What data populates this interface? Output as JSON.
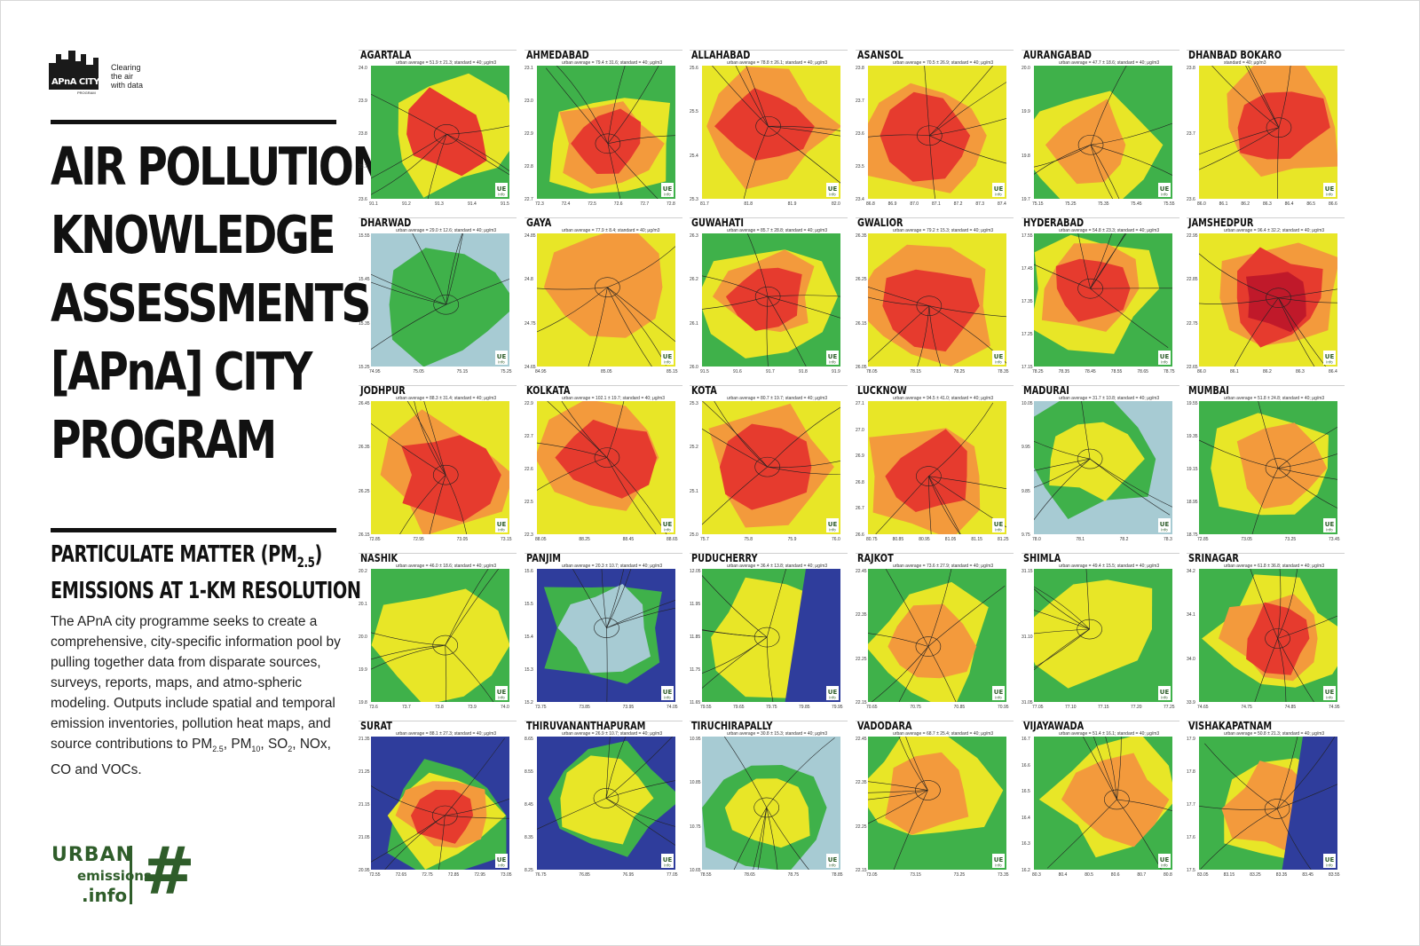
{
  "program_logo": {
    "name": "APnA CITY",
    "sub": "PROGRAM",
    "tagline": [
      "Clearing",
      "the air",
      "with data"
    ]
  },
  "title_lines": [
    "AIR POLLUTION",
    "KNOWLEDGE",
    "ASSESSMENTS",
    "[APnA] CITY",
    "PROGRAM"
  ],
  "subtitle": {
    "line1_pre": "PARTICULATE MATTER (PM",
    "line1_sub": "2.5",
    "line1_post": ")",
    "line2": "EMISSIONS AT 1-KM RESOLUTION"
  },
  "description": {
    "text": "The APnA city programme seeks to create a comprehensive, city-specific information pool by pulling together data from disparate sources, surveys, reports, maps, and atmo-spheric modeling. Outputs include spatial and temporal emission inventories, pollution heat maps, and source contributions to",
    "pm25": "PM",
    "pm25_sub": "2.5",
    "pm10": "PM",
    "pm10_sub": "10",
    "so2": "SO",
    "so2_sub": "2",
    "tail": "NOx, CO and VOCs."
  },
  "ue_logo": {
    "urban": "URBAN",
    "emissions": "emissions",
    "info": ".info",
    "symbol": "#"
  },
  "map_badge": {
    "top": "UE",
    "bottom": "info"
  },
  "colors": {
    "green": "#3fb14a",
    "yellow": "#e8e627",
    "orange": "#f39a3c",
    "red": "#e63b2e",
    "darkred": "#c0192a",
    "water": "#2f3d9c",
    "lightblue": "#a7cbd3",
    "road": "#222222"
  },
  "cities": [
    {
      "name": "AGARTALA",
      "stat": "urban average = 51.9 ± 21.3; standard = 40; μg/m3",
      "yticks": [
        "24.0",
        "23.9",
        "23.8",
        "23.7",
        "23.6"
      ],
      "xticks": [
        "91.1",
        "91.2",
        "91.3",
        "91.4",
        "91.5"
      ],
      "levels": [
        "green",
        "yellow",
        "red"
      ]
    },
    {
      "name": "AHMEDABAD",
      "stat": "urban average = 79.4 ± 31.6; standard = 40; μg/m3",
      "yticks": [
        "23.1",
        "23.0",
        "22.9",
        "22.8",
        "22.7"
      ],
      "xticks": [
        "72.3",
        "72.4",
        "72.5",
        "72.6",
        "72.7",
        "72.8"
      ],
      "levels": [
        "green",
        "yellow",
        "orange",
        "red"
      ]
    },
    {
      "name": "ALLAHABAD",
      "stat": "urban average = 78.8 ± 26.1; standard = 40; μg/m3",
      "yticks": [
        "25.6",
        "25.5",
        "25.4",
        "25.3"
      ],
      "xticks": [
        "81.7",
        "81.8",
        "81.9",
        "82.0"
      ],
      "levels": [
        "yellow",
        "orange",
        "red"
      ]
    },
    {
      "name": "ASANSOL",
      "stat": "urban average = 70.5 ± 26.9; standard = 40; μg/m3",
      "yticks": [
        "23.8",
        "23.7",
        "23.6",
        "23.5",
        "23.4"
      ],
      "xticks": [
        "86.8",
        "86.9",
        "87.0",
        "87.1",
        "87.2",
        "87.3",
        "87.4"
      ],
      "levels": [
        "yellow",
        "orange",
        "red"
      ]
    },
    {
      "name": "AURANGABAD",
      "stat": "urban average = 47.7 ± 18.6; standard = 40; μg/m3",
      "yticks": [
        "20.0",
        "19.9",
        "19.8",
        "19.7"
      ],
      "xticks": [
        "75.15",
        "75.25",
        "75.35",
        "75.45",
        "75.55"
      ],
      "levels": [
        "green",
        "yellow",
        "orange"
      ]
    },
    {
      "name": "DHANBAD BOKARO",
      "stat": "standard = 40; μg/m3",
      "yticks": [
        "23.8",
        "23.7",
        "23.6"
      ],
      "xticks": [
        "86.0",
        "86.1",
        "86.2",
        "86.3",
        "86.4",
        "86.5",
        "86.6"
      ],
      "levels": [
        "yellow",
        "orange",
        "red"
      ]
    },
    {
      "name": "DHARWAD",
      "stat": "urban average = 29.0 ± 12.6; standard = 40; μg/m3",
      "yticks": [
        "15.55",
        "15.45",
        "15.35",
        "15.25"
      ],
      "xticks": [
        "74.95",
        "75.05",
        "75.15",
        "75.25"
      ],
      "levels": [
        "lightblue",
        "green"
      ]
    },
    {
      "name": "GAYA",
      "stat": "urban average = 77.9 ± 8.4; standard = 40; μg/m3",
      "yticks": [
        "24.85",
        "24.8",
        "24.75",
        "24.65"
      ],
      "xticks": [
        "84.95",
        "85.05",
        "85.15"
      ],
      "levels": [
        "yellow",
        "orange"
      ]
    },
    {
      "name": "GUWAHATI",
      "stat": "urban average = 85.7 ± 28.8; standard = 40; μg/m3",
      "yticks": [
        "26.3",
        "26.2",
        "26.1",
        "26.0"
      ],
      "xticks": [
        "91.5",
        "91.6",
        "91.7",
        "91.8",
        "91.9"
      ],
      "levels": [
        "green",
        "yellow",
        "orange",
        "red"
      ]
    },
    {
      "name": "GWALIOR",
      "stat": "urban average = 79.2 ± 15.3; standard = 40; μg/m3",
      "yticks": [
        "26.35",
        "26.25",
        "26.15",
        "26.05"
      ],
      "xticks": [
        "78.05",
        "78.15",
        "78.25",
        "78.35"
      ],
      "levels": [
        "yellow",
        "orange",
        "red"
      ]
    },
    {
      "name": "HYDERABAD",
      "stat": "urban average = 54.8 ± 23.3; standard = 40; μg/m3",
      "yticks": [
        "17.55",
        "17.45",
        "17.35",
        "17.25",
        "17.15"
      ],
      "xticks": [
        "78.25",
        "78.35",
        "78.45",
        "78.55",
        "78.65",
        "78.75"
      ],
      "levels": [
        "green",
        "yellow",
        "orange",
        "red"
      ]
    },
    {
      "name": "JAMSHEDPUR",
      "stat": "urban average = 96.4 ± 32.2; standard = 40; μg/m3",
      "yticks": [
        "22.95",
        "22.85",
        "22.75",
        "22.65"
      ],
      "xticks": [
        "86.0",
        "86.1",
        "86.2",
        "86.3",
        "86.4"
      ],
      "levels": [
        "yellow",
        "orange",
        "red",
        "darkred"
      ]
    },
    {
      "name": "JODHPUR",
      "stat": "urban average = 88.3 ± 31.4; standard = 40; μg/m3",
      "yticks": [
        "26.45",
        "26.35",
        "26.25",
        "26.15"
      ],
      "xticks": [
        "72.85",
        "72.95",
        "73.05",
        "73.15"
      ],
      "levels": [
        "yellow",
        "orange",
        "red"
      ]
    },
    {
      "name": "KOLKATA",
      "stat": "urban average = 102.1 ± 19.7; standard = 40; μg/m3",
      "yticks": [
        "22.9",
        "22.7",
        "22.6",
        "22.5",
        "22.3"
      ],
      "xticks": [
        "88.05",
        "88.25",
        "88.45",
        "88.65"
      ],
      "levels": [
        "yellow",
        "orange",
        "red"
      ]
    },
    {
      "name": "KOTA",
      "stat": "urban average = 80.7 ± 19.7; standard = 40; μg/m3",
      "yticks": [
        "25.3",
        "25.2",
        "25.1",
        "25.0"
      ],
      "xticks": [
        "75.7",
        "75.8",
        "75.9",
        "76.0"
      ],
      "levels": [
        "yellow",
        "orange",
        "red"
      ]
    },
    {
      "name": "LUCKNOW",
      "stat": "urban average = 94.5 ± 41.0; standard = 40; μg/m3",
      "yticks": [
        "27.1",
        "27.0",
        "26.9",
        "26.8",
        "26.7",
        "26.6"
      ],
      "xticks": [
        "80.75",
        "80.85",
        "80.95",
        "81.05",
        "81.15",
        "81.25"
      ],
      "levels": [
        "yellow",
        "orange",
        "red"
      ]
    },
    {
      "name": "MADURAI",
      "stat": "urban average = 31.7 ± 10.8; standard = 40; μg/m3",
      "yticks": [
        "10.05",
        "9.95",
        "9.85",
        "9.75"
      ],
      "xticks": [
        "78.0",
        "78.1",
        "78.2",
        "78.3"
      ],
      "levels": [
        "lightblue",
        "green",
        "yellow"
      ]
    },
    {
      "name": "MUMBAI",
      "stat": "urban average = 51.8 ± 24.8; standard = 40; μg/m3",
      "yticks": [
        "19.55",
        "19.35",
        "19.15",
        "18.95",
        "18.75"
      ],
      "xticks": [
        "72.85",
        "73.05",
        "73.25",
        "73.45"
      ],
      "levels": [
        "green",
        "yellow",
        "orange"
      ]
    },
    {
      "name": "NASHIK",
      "stat": "urban average = 46.0 ± 18.6; standard = 40; μg/m3",
      "yticks": [
        "20.2",
        "20.1",
        "20.0",
        "19.9",
        "19.8"
      ],
      "xticks": [
        "73.6",
        "73.7",
        "73.8",
        "73.9",
        "74.0"
      ],
      "levels": [
        "green",
        "yellow"
      ]
    },
    {
      "name": "PANJIM",
      "stat": "urban average = 20.3 ± 10.7; standard = 40; μg/m3",
      "yticks": [
        "15.6",
        "15.5",
        "15.4",
        "15.3",
        "15.2"
      ],
      "xticks": [
        "73.75",
        "73.85",
        "73.95",
        "74.05"
      ],
      "levels": [
        "water",
        "green",
        "lightblue"
      ]
    },
    {
      "name": "PUDUCHERRY",
      "stat": "urban average = 36.4 ± 13.8; standard = 40; μg/m3",
      "yticks": [
        "12.05",
        "11.95",
        "11.85",
        "11.75",
        "11.65"
      ],
      "xticks": [
        "79.55",
        "79.65",
        "79.75",
        "79.85",
        "79.95"
      ],
      "levels": [
        "green",
        "yellow",
        "water"
      ]
    },
    {
      "name": "RAJKOT",
      "stat": "urban average = 73.6 ± 27.9; standard = 40; μg/m3",
      "yticks": [
        "22.45",
        "22.35",
        "22.25",
        "22.15"
      ],
      "xticks": [
        "70.65",
        "70.75",
        "70.85",
        "70.95"
      ],
      "levels": [
        "green",
        "yellow",
        "orange"
      ]
    },
    {
      "name": "SHIMLA",
      "stat": "urban average = 49.4 ± 15.5; standard = 40; μg/m3",
      "yticks": [
        "31.15",
        "31.10",
        "31.05"
      ],
      "xticks": [
        "77.05",
        "77.10",
        "77.15",
        "77.20",
        "77.25"
      ],
      "levels": [
        "green",
        "yellow"
      ]
    },
    {
      "name": "SRINAGAR",
      "stat": "urban average = 61.8 ± 36.8; standard = 40; μg/m3",
      "yticks": [
        "34.2",
        "34.1",
        "34.0",
        "33.9"
      ],
      "xticks": [
        "74.65",
        "74.75",
        "74.85",
        "74.95"
      ],
      "levels": [
        "green",
        "yellow",
        "orange",
        "red"
      ]
    },
    {
      "name": "SURAT",
      "stat": "urban average = 88.1 ± 27.3; standard = 40; μg/m3",
      "yticks": [
        "21.35",
        "21.25",
        "21.15",
        "21.05",
        "20.95"
      ],
      "xticks": [
        "72.55",
        "72.65",
        "72.75",
        "72.85",
        "72.95",
        "73.05"
      ],
      "levels": [
        "water",
        "green",
        "yellow",
        "orange",
        "red"
      ]
    },
    {
      "name": "THIRUVANANTHAPURAM",
      "stat": "urban average = 26.9 ± 10.7; standard = 40; μg/m3",
      "yticks": [
        "8.65",
        "8.55",
        "8.45",
        "8.35",
        "8.25"
      ],
      "xticks": [
        "76.75",
        "76.85",
        "76.95",
        "77.05"
      ],
      "levels": [
        "water",
        "green",
        "yellow"
      ]
    },
    {
      "name": "TIRUCHIRAPALLY",
      "stat": "urban average = 30.8 ± 15.3; standard = 40; μg/m3",
      "yticks": [
        "10.95",
        "10.85",
        "10.75",
        "10.65"
      ],
      "xticks": [
        "78.55",
        "78.65",
        "78.75",
        "78.85"
      ],
      "levels": [
        "lightblue",
        "green",
        "yellow"
      ]
    },
    {
      "name": "VADODARA",
      "stat": "urban average = 68.7 ± 25.4; standard = 40; μg/m3",
      "yticks": [
        "22.45",
        "22.35",
        "22.25",
        "22.15"
      ],
      "xticks": [
        "73.05",
        "73.15",
        "73.25",
        "73.35"
      ],
      "levels": [
        "green",
        "yellow",
        "orange"
      ]
    },
    {
      "name": "VIJAYAWADA",
      "stat": "urban average = 51.4 ± 16.1; standard = 40; μg/m3",
      "yticks": [
        "16.7",
        "16.6",
        "16.5",
        "16.4",
        "16.3",
        "16.2"
      ],
      "xticks": [
        "80.3",
        "80.4",
        "80.5",
        "80.6",
        "80.7",
        "80.8"
      ],
      "levels": [
        "green",
        "yellow",
        "orange"
      ]
    },
    {
      "name": "VISHAKAPATNAM",
      "stat": "urban average = 50.8 ± 21.3; standard = 40; μg/m3",
      "yticks": [
        "17.9",
        "17.8",
        "17.7",
        "17.6",
        "17.5"
      ],
      "xticks": [
        "83.05",
        "83.15",
        "83.25",
        "83.35",
        "83.45",
        "83.55"
      ],
      "levels": [
        "green",
        "yellow",
        "orange",
        "water"
      ]
    }
  ]
}
